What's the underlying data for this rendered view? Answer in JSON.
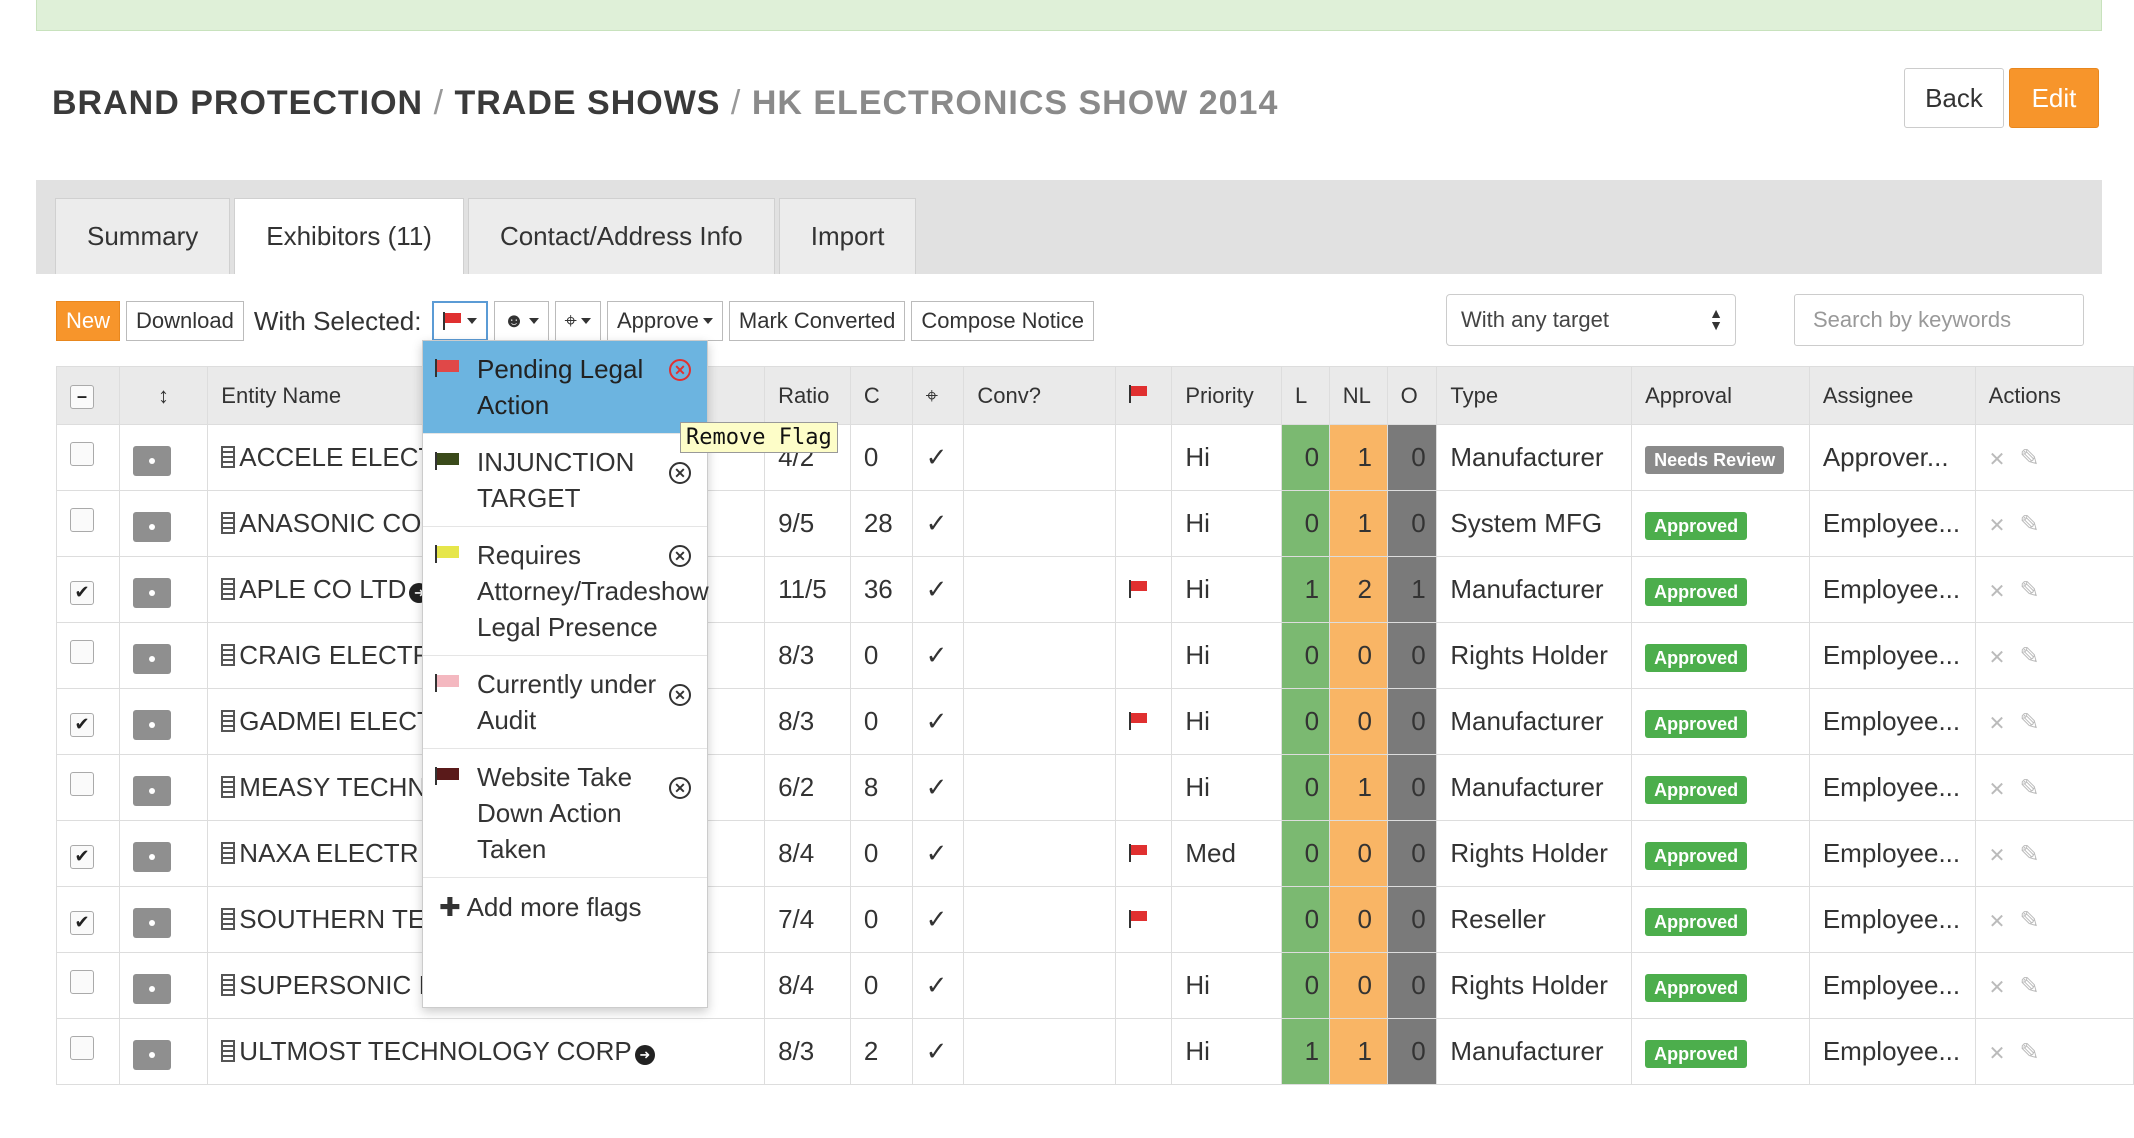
{
  "breadcrumb": {
    "part1": "BRAND PROTECTION",
    "part2": "TRADE SHOWS",
    "current": "HK ELECTRONICS SHOW 2014",
    "sep": "/"
  },
  "header_buttons": {
    "back": "Back",
    "edit": "Edit"
  },
  "tabs": [
    {
      "label": "Summary"
    },
    {
      "label": "Exhibitors (11)"
    },
    {
      "label": "Contact/Address Info"
    },
    {
      "label": "Import"
    }
  ],
  "toolbar": {
    "new": "New",
    "download": "Download",
    "with_selected": "With Selected:",
    "approve": "Approve",
    "mark_converted": "Mark Converted",
    "compose_notice": "Compose Notice"
  },
  "target_select": {
    "value": "With any target"
  },
  "search": {
    "placeholder": "Search by keywords"
  },
  "columns": {
    "entity": "Entity Name",
    "ratio": "Ratio",
    "c": "C",
    "conv": "Conv?",
    "priority": "Priority",
    "l": "L",
    "nl": "NL",
    "o": "O",
    "type": "Type",
    "approval": "Approval",
    "assignee": "Assignee",
    "actions": "Actions"
  },
  "rows": [
    {
      "name": "ACCELE ELECT",
      "checked": false,
      "ratio": "4/2",
      "c": "0",
      "check": "✓",
      "flag": false,
      "priority": "Hi",
      "l": "0",
      "nl": "1",
      "o": "0",
      "type": "Manufacturer",
      "approval": "Needs Review",
      "assignee": "Approver..."
    },
    {
      "name": "ANASONIC CO",
      "checked": false,
      "ratio": "9/5",
      "c": "28",
      "check": "✓",
      "flag": false,
      "priority": "Hi",
      "l": "0",
      "nl": "1",
      "o": "0",
      "type": "System MFG",
      "approval": "Approved",
      "assignee": "Employee..."
    },
    {
      "name": "APLE CO LTD",
      "checked": true,
      "ratio": "11/5",
      "c": "36",
      "check": "✓",
      "flag": true,
      "priority": "Hi",
      "l": "1",
      "nl": "2",
      "o": "1",
      "type": "Manufacturer",
      "approval": "Approved",
      "assignee": "Employee..."
    },
    {
      "name": "CRAIG ELECTR",
      "checked": false,
      "ratio": "8/3",
      "c": "0",
      "check": "✓",
      "flag": false,
      "priority": "Hi",
      "l": "0",
      "nl": "0",
      "o": "0",
      "type": "Rights Holder",
      "approval": "Approved",
      "assignee": "Employee..."
    },
    {
      "name": "GADMEI ELECT",
      "checked": true,
      "ratio": "8/3",
      "c": "0",
      "check": "✓",
      "flag": true,
      "priority": "Hi",
      "l": "0",
      "nl": "0",
      "o": "0",
      "type": "Manufacturer",
      "approval": "Approved",
      "assignee": "Employee..."
    },
    {
      "name": "MEASY TECHN",
      "checked": false,
      "ratio": "6/2",
      "c": "8",
      "check": "✓",
      "flag": false,
      "priority": "Hi",
      "l": "0",
      "nl": "1",
      "o": "0",
      "type": "Manufacturer",
      "approval": "Approved",
      "assignee": "Employee..."
    },
    {
      "name": "NAXA ELECTR",
      "checked": true,
      "ratio": "8/4",
      "c": "0",
      "check": "✓",
      "flag": true,
      "priority": "Med",
      "l": "0",
      "nl": "0",
      "o": "0",
      "type": "Rights Holder",
      "approval": "Approved",
      "assignee": "Employee..."
    },
    {
      "name": "SOUTHERN TE",
      "checked": true,
      "ratio": "7/4",
      "c": "0",
      "check": "✓",
      "flag": true,
      "priority": "",
      "l": "0",
      "nl": "0",
      "o": "0",
      "type": "Reseller",
      "approval": "Approved",
      "assignee": "Employee..."
    },
    {
      "name": "SUPERSONIC I",
      "checked": false,
      "ratio": "8/4",
      "c": "0",
      "check": "✓",
      "flag": false,
      "priority": "Hi",
      "l": "0",
      "nl": "0",
      "o": "0",
      "type": "Rights Holder",
      "approval": "Approved",
      "assignee": "Employee..."
    },
    {
      "name": "ULTMOST TECHNOLOGY CORP",
      "checked": false,
      "ratio": "8/3",
      "c": "2",
      "check": "✓",
      "flag": false,
      "priority": "Hi",
      "l": "1",
      "nl": "1",
      "o": "0",
      "type": "Manufacturer",
      "approval": "Approved",
      "assignee": "Employee..."
    }
  ],
  "flag_menu": {
    "items": [
      {
        "label": "Pending Legal Action",
        "color": "#e04848",
        "selected": true
      },
      {
        "label": "INJUNCTION TARGET",
        "color": "#3a4a1a",
        "selected": false
      },
      {
        "label": "Requires Attorney/Tradeshow Legal Presence",
        "color": "#e6e64a",
        "selected": false
      },
      {
        "label": "Currently under Audit",
        "color": "#f4b8c0",
        "selected": false
      },
      {
        "label": "Website Take Down Action Taken",
        "color": "#5a1a1a",
        "selected": false
      }
    ],
    "add_more": "Add more flags",
    "tooltip": "Remove Flag"
  }
}
